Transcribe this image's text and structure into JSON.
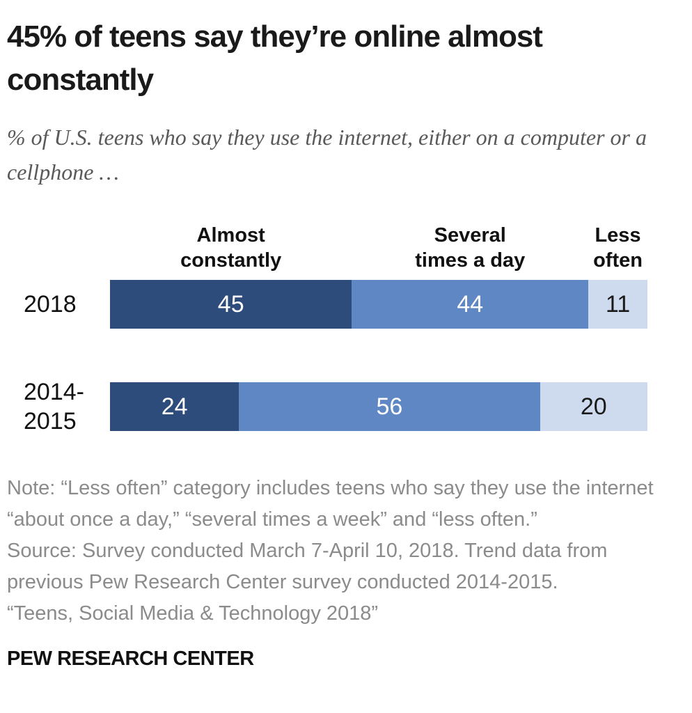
{
  "header": {
    "title": "45% of teens say they’re online almost constantly",
    "subtitle": "% of U.S. teens who say they use the internet, either on a computer or a cellphone …"
  },
  "chart_data": {
    "type": "bar",
    "stacked": true,
    "orientation": "horizontal",
    "unit": "%",
    "title": "45% of teens say they’re online almost constantly",
    "subtitle": "% of U.S. teens who say they use the internet, either on a computer or a cellphone …",
    "categories": [
      {
        "label": "2018",
        "lines": [
          "2018"
        ]
      },
      {
        "label": "2014-2015",
        "lines": [
          "2014-",
          "2015"
        ]
      }
    ],
    "series": [
      {
        "name": "Almost constantly",
        "name_lines": [
          "Almost",
          "constantly"
        ],
        "values": [
          45,
          24
        ],
        "color": "#2d4c7c",
        "value_label_color": "#ffffff"
      },
      {
        "name": "Several times a day",
        "name_lines": [
          "Several",
          "times a day"
        ],
        "values": [
          44,
          56
        ],
        "color": "#5e87c4",
        "value_label_color": "#ffffff"
      },
      {
        "name": "Less often",
        "name_lines": [
          "Less",
          "often"
        ],
        "values": [
          11,
          20
        ],
        "color": "#cedbee",
        "value_label_color": "#1a1a1a"
      }
    ],
    "xlim": [
      0,
      100
    ],
    "grid": false,
    "legend_position": "column-headers-above-first-bar"
  },
  "notes": [
    "Note: “Less often” category includes teens who say they use the internet “about once a day,” “several times a week” and “less often.”",
    "Source: Survey conducted March 7-April 10, 2018. Trend data from previous Pew Research Center survey conducted 2014-2015.",
    "“Teens, Social Media & Technology 2018”"
  ],
  "footer": {
    "brand": "PEW RESEARCH CENTER"
  }
}
